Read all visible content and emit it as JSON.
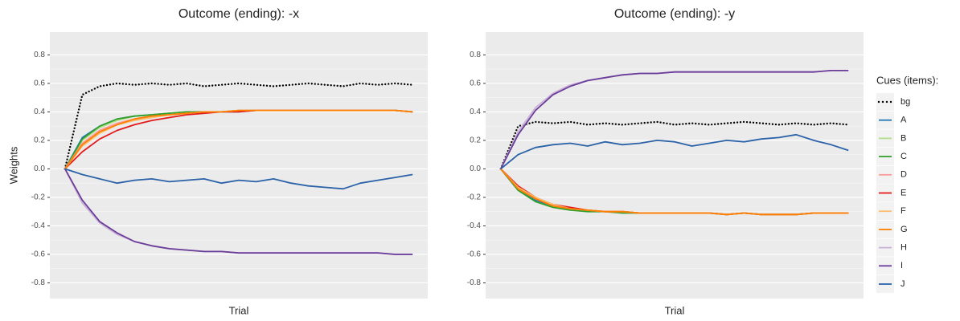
{
  "chart_data": [
    {
      "type": "line",
      "title": "Outcome (ending): -x",
      "x_label": "Trial",
      "y_label": "Weights",
      "ylim": [
        -0.91,
        0.96
      ],
      "yticks": [
        -0.8,
        -0.6,
        -0.4,
        -0.2,
        {
          "value": 0,
          "label": "0.0"
        },
        0.2,
        0.4,
        0.6,
        0.8
      ],
      "grid": true,
      "series": [
        {
          "name": "bg",
          "color": "#000000",
          "linestyle": "dotted",
          "values": [
            0,
            0.52,
            0.58,
            0.6,
            0.59,
            0.6,
            0.59,
            0.6,
            0.58,
            0.59,
            0.6,
            0.59,
            0.58,
            0.59,
            0.6,
            0.59,
            0.58,
            0.6,
            0.59,
            0.6,
            0.59
          ]
        },
        {
          "name": "A",
          "color": "#1f78b4",
          "linestyle": "solid",
          "values": [
            0,
            0.22,
            0.3,
            0.35,
            0.37,
            0.38,
            0.39,
            0.39,
            0.4,
            0.4,
            0.4,
            0.41,
            0.41,
            0.41,
            0.41,
            0.41,
            0.41,
            0.41,
            0.41,
            0.41,
            0.4
          ]
        },
        {
          "name": "B",
          "color": "#b2df8a",
          "linestyle": "solid",
          "values": [
            0,
            0.2,
            0.29,
            0.34,
            0.37,
            0.38,
            0.39,
            0.4,
            0.4,
            0.4,
            0.41,
            0.41,
            0.41,
            0.41,
            0.41,
            0.41,
            0.41,
            0.41,
            0.41,
            0.41,
            0.4
          ]
        },
        {
          "name": "C",
          "color": "#33a02c",
          "linestyle": "solid",
          "values": [
            0,
            0.21,
            0.3,
            0.35,
            0.37,
            0.38,
            0.39,
            0.4,
            0.4,
            0.4,
            0.41,
            0.41,
            0.41,
            0.41,
            0.41,
            0.41,
            0.41,
            0.41,
            0.41,
            0.41,
            0.4
          ]
        },
        {
          "name": "D",
          "color": "#fb9a99",
          "linestyle": "solid",
          "values": [
            0,
            0.18,
            0.27,
            0.32,
            0.35,
            0.37,
            0.38,
            0.39,
            0.4,
            0.4,
            0.41,
            0.41,
            0.41,
            0.41,
            0.41,
            0.41,
            0.41,
            0.41,
            0.41,
            0.41,
            0.4
          ]
        },
        {
          "name": "E",
          "color": "#e31a1c",
          "linestyle": "solid",
          "values": [
            0,
            0.12,
            0.21,
            0.27,
            0.31,
            0.34,
            0.36,
            0.38,
            0.39,
            0.4,
            0.4,
            0.41,
            0.41,
            0.41,
            0.41,
            0.41,
            0.41,
            0.41,
            0.41,
            0.41,
            0.4
          ]
        },
        {
          "name": "F",
          "color": "#fdbf6f",
          "linestyle": "solid",
          "values": [
            0,
            0.16,
            0.25,
            0.31,
            0.34,
            0.36,
            0.38,
            0.39,
            0.4,
            0.4,
            0.41,
            0.41,
            0.41,
            0.41,
            0.41,
            0.41,
            0.41,
            0.41,
            0.41,
            0.41,
            0.4
          ]
        },
        {
          "name": "G",
          "color": "#ff7f00",
          "linestyle": "solid",
          "values": [
            0,
            0.17,
            0.26,
            0.31,
            0.35,
            0.37,
            0.38,
            0.39,
            0.4,
            0.4,
            0.41,
            0.41,
            0.41,
            0.41,
            0.41,
            0.41,
            0.41,
            0.41,
            0.41,
            0.41,
            0.4
          ]
        },
        {
          "name": "H",
          "color": "#cab2d6",
          "linestyle": "solid",
          "values": [
            0,
            -0.24,
            -0.38,
            -0.46,
            -0.51,
            -0.54,
            -0.56,
            -0.57,
            -0.58,
            -0.58,
            -0.59,
            -0.59,
            -0.59,
            -0.59,
            -0.59,
            -0.59,
            -0.59,
            -0.59,
            -0.59,
            -0.6,
            -0.6
          ]
        },
        {
          "name": "I",
          "color": "#6a3d9a",
          "linestyle": "solid",
          "values": [
            0,
            -0.22,
            -0.37,
            -0.45,
            -0.51,
            -0.54,
            -0.56,
            -0.57,
            -0.58,
            -0.58,
            -0.59,
            -0.59,
            -0.59,
            -0.59,
            -0.59,
            -0.59,
            -0.59,
            -0.59,
            -0.59,
            -0.6,
            -0.6
          ]
        },
        {
          "name": "J",
          "color": "#2b62a8",
          "linestyle": "solid",
          "values": [
            0,
            -0.04,
            -0.07,
            -0.1,
            -0.08,
            -0.07,
            -0.09,
            -0.08,
            -0.07,
            -0.1,
            -0.08,
            -0.09,
            -0.07,
            -0.1,
            -0.12,
            -0.13,
            -0.14,
            -0.1,
            -0.08,
            -0.06,
            -0.04
          ]
        }
      ]
    },
    {
      "type": "line",
      "title": "Outcome (ending): -y",
      "x_label": "Trial",
      "ylim": [
        -0.91,
        0.96
      ],
      "yticks": [
        -0.8,
        -0.6,
        -0.4,
        -0.2,
        {
          "value": 0,
          "label": "0.0"
        },
        0.2,
        0.4,
        0.6,
        0.8
      ],
      "grid": true,
      "series": [
        {
          "color": "#000000",
          "linestyle": "dotted",
          "values": [
            0,
            0.3,
            0.33,
            0.32,
            0.33,
            0.31,
            0.32,
            0.31,
            0.32,
            0.33,
            0.31,
            0.32,
            0.31,
            0.32,
            0.33,
            0.32,
            0.31,
            0.32,
            0.31,
            0.32,
            0.31
          ]
        },
        {
          "color": "#1f78b4",
          "linestyle": "solid",
          "values": [
            0,
            -0.15,
            -0.22,
            -0.26,
            -0.28,
            -0.29,
            -0.3,
            -0.3,
            -0.31,
            -0.31,
            -0.31,
            -0.31,
            -0.31,
            -0.32,
            -0.31,
            -0.32,
            -0.32,
            -0.32,
            -0.31,
            -0.31,
            -0.31
          ]
        },
        {
          "color": "#b2df8a",
          "linestyle": "solid",
          "values": [
            0,
            -0.14,
            -0.21,
            -0.25,
            -0.28,
            -0.29,
            -0.3,
            -0.3,
            -0.31,
            -0.31,
            -0.31,
            -0.31,
            -0.31,
            -0.32,
            -0.31,
            -0.32,
            -0.32,
            -0.32,
            -0.31,
            -0.31,
            -0.31
          ]
        },
        {
          "color": "#33a02c",
          "linestyle": "solid",
          "values": [
            0,
            -0.15,
            -0.23,
            -0.27,
            -0.29,
            -0.3,
            -0.3,
            -0.31,
            -0.31,
            -0.31,
            -0.31,
            -0.31,
            -0.31,
            -0.32,
            -0.31,
            -0.32,
            -0.32,
            -0.32,
            -0.31,
            -0.31,
            -0.31
          ]
        },
        {
          "color": "#fb9a99",
          "linestyle": "solid",
          "values": [
            0,
            -0.13,
            -0.21,
            -0.25,
            -0.28,
            -0.29,
            -0.3,
            -0.3,
            -0.31,
            -0.31,
            -0.31,
            -0.31,
            -0.31,
            -0.32,
            -0.31,
            -0.32,
            -0.32,
            -0.32,
            -0.31,
            -0.31,
            -0.31
          ]
        },
        {
          "color": "#e31a1c",
          "linestyle": "solid",
          "values": [
            0,
            -0.12,
            -0.2,
            -0.25,
            -0.27,
            -0.29,
            -0.3,
            -0.3,
            -0.31,
            -0.31,
            -0.31,
            -0.31,
            -0.31,
            -0.32,
            -0.31,
            -0.32,
            -0.32,
            -0.32,
            -0.31,
            -0.31,
            -0.31
          ]
        },
        {
          "color": "#fdbf6f",
          "linestyle": "solid",
          "values": [
            0,
            -0.13,
            -0.2,
            -0.25,
            -0.28,
            -0.29,
            -0.3,
            -0.3,
            -0.31,
            -0.31,
            -0.31,
            -0.31,
            -0.31,
            -0.32,
            -0.31,
            -0.32,
            -0.32,
            -0.32,
            -0.31,
            -0.31,
            -0.31
          ]
        },
        {
          "color": "#ff7f00",
          "linestyle": "solid",
          "values": [
            0,
            -0.14,
            -0.21,
            -0.26,
            -0.28,
            -0.29,
            -0.3,
            -0.3,
            -0.31,
            -0.31,
            -0.31,
            -0.31,
            -0.31,
            -0.32,
            -0.31,
            -0.32,
            -0.32,
            -0.32,
            -0.31,
            -0.31,
            -0.31
          ]
        },
        {
          "color": "#cab2d6",
          "linestyle": "solid",
          "values": [
            0,
            0.26,
            0.43,
            0.53,
            0.59,
            0.62,
            0.64,
            0.66,
            0.67,
            0.67,
            0.68,
            0.68,
            0.68,
            0.68,
            0.68,
            0.68,
            0.68,
            0.68,
            0.68,
            0.69,
            0.69
          ]
        },
        {
          "color": "#6a3d9a",
          "linestyle": "solid",
          "values": [
            0,
            0.24,
            0.41,
            0.52,
            0.58,
            0.62,
            0.64,
            0.66,
            0.67,
            0.67,
            0.68,
            0.68,
            0.68,
            0.68,
            0.68,
            0.68,
            0.68,
            0.68,
            0.68,
            0.69,
            0.69
          ]
        },
        {
          "color": "#2b62a8",
          "linestyle": "solid",
          "values": [
            0,
            0.1,
            0.15,
            0.17,
            0.18,
            0.16,
            0.19,
            0.17,
            0.18,
            0.2,
            0.19,
            0.16,
            0.18,
            0.2,
            0.19,
            0.21,
            0.22,
            0.24,
            0.2,
            0.17,
            0.13
          ]
        }
      ]
    }
  ],
  "legend": {
    "title": "Cues (items):"
  }
}
